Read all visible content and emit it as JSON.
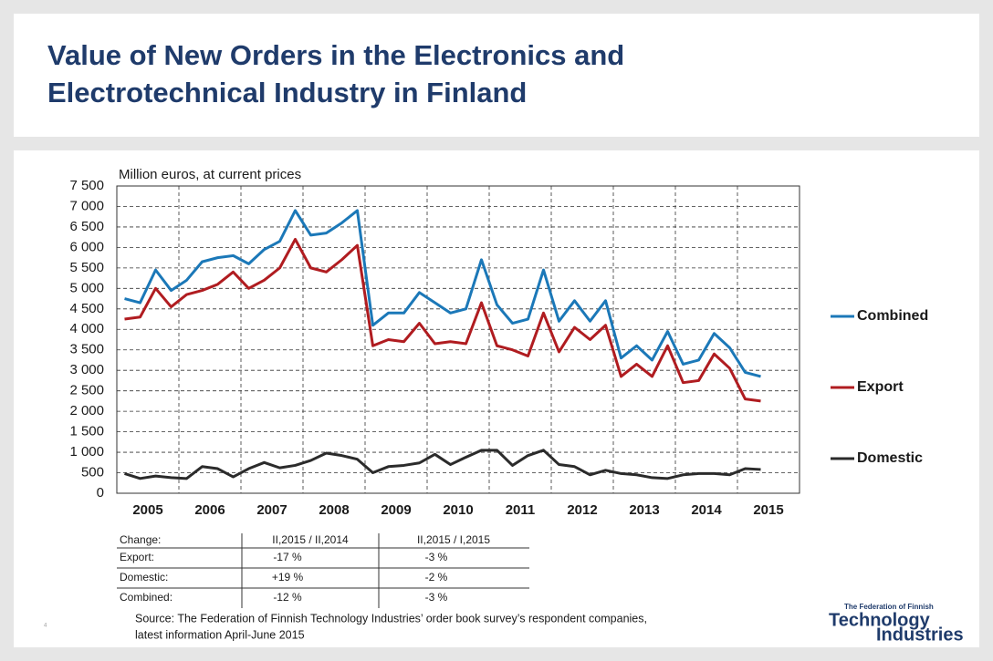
{
  "slide": {
    "title": [
      "Value of New Orders in the Electronics and",
      "Electrotechnical Industry in Finland"
    ],
    "page": "4",
    "source": [
      "Source: The Federation of Finnish Technology Industries’ order book survey’s respondent companies,",
      "latest information April-June 2015"
    ],
    "logo": [
      "The Federation of Finnish",
      "Technology",
      "Industries"
    ]
  },
  "chart_data": {
    "type": "line",
    "subtitle": "Million euros, at current prices",
    "categories": [
      null,
      "2005",
      null,
      null,
      null,
      "2006",
      null,
      null,
      null,
      "2007",
      null,
      null,
      null,
      "2008",
      null,
      null,
      null,
      "2009",
      null,
      null,
      null,
      "2010",
      null,
      null,
      null,
      "2011",
      null,
      null,
      null,
      "2012",
      null,
      null,
      null,
      "2013",
      null,
      null,
      null,
      "2014",
      null,
      null,
      null,
      "2015"
    ],
    "series": [
      {
        "name": "Combined",
        "color": "#1b78b8",
        "values": [
          4750,
          4650,
          5450,
          4950,
          5200,
          5650,
          5750,
          5800,
          5600,
          5950,
          6150,
          6900,
          6300,
          6350,
          6600,
          6900,
          4100,
          4400,
          4400,
          4900,
          4650,
          4400,
          4500,
          5700,
          4600,
          4150,
          4250,
          5450,
          4200,
          4700,
          4200,
          4700,
          3300,
          3600,
          3250,
          3950,
          3150,
          3250,
          3900,
          3550,
          2950,
          2850
        ]
      },
      {
        "name": "Export",
        "color": "#b01c20",
        "values": [
          4250,
          4300,
          5000,
          4550,
          4850,
          4950,
          5100,
          5400,
          5000,
          5200,
          5500,
          6200,
          5500,
          5400,
          5700,
          6050,
          3600,
          3750,
          3700,
          4150,
          3650,
          3700,
          3650,
          4650,
          3600,
          3500,
          3350,
          4400,
          3450,
          4050,
          3750,
          4100,
          2850,
          3150,
          2850,
          3600,
          2700,
          2750,
          3400,
          3050,
          2300,
          2250
        ]
      },
      {
        "name": "Domestic",
        "color": "#2b2b2b",
        "values": [
          480,
          360,
          420,
          380,
          360,
          650,
          600,
          400,
          600,
          750,
          620,
          680,
          800,
          980,
          920,
          830,
          500,
          650,
          680,
          740,
          950,
          700,
          880,
          1050,
          1050,
          680,
          920,
          1050,
          700,
          650,
          450,
          560,
          480,
          450,
          380,
          360,
          450,
          480,
          480,
          450,
          600,
          580
        ]
      }
    ],
    "ylim": [
      0,
      7500
    ],
    "yticks": [
      0,
      500,
      {
        "value": 1000,
        "label": "1 000"
      },
      {
        "value": 1500,
        "label": "1 500"
      },
      {
        "value": 2000,
        "label": "2 000"
      },
      {
        "value": 2500,
        "label": "2 500"
      },
      {
        "value": 3000,
        "label": "3 000"
      },
      {
        "value": 3500,
        "label": "3 500"
      },
      {
        "value": 4000,
        "label": "4 000"
      },
      {
        "value": 4500,
        "label": "4 500"
      },
      {
        "value": 5000,
        "label": "5 000"
      },
      {
        "value": 5500,
        "label": "5 500"
      },
      {
        "value": 6000,
        "label": "6 000"
      },
      {
        "value": 6500,
        "label": "6 500"
      },
      {
        "value": 7000,
        "label": "7 000"
      },
      {
        "value": 7500,
        "label": "7 500"
      }
    ],
    "grid": true,
    "legend": "right"
  },
  "table": {
    "header": [
      "Change:",
      "II,2015 / II,2014",
      "II,2015 / I,2015"
    ],
    "rows": [
      [
        "Export:",
        "-17 %",
        "-3 %"
      ],
      [
        "Domestic:",
        "+19 %",
        "-2 %"
      ],
      [
        "Combined:",
        "-12 %",
        "-3 %"
      ]
    ]
  }
}
